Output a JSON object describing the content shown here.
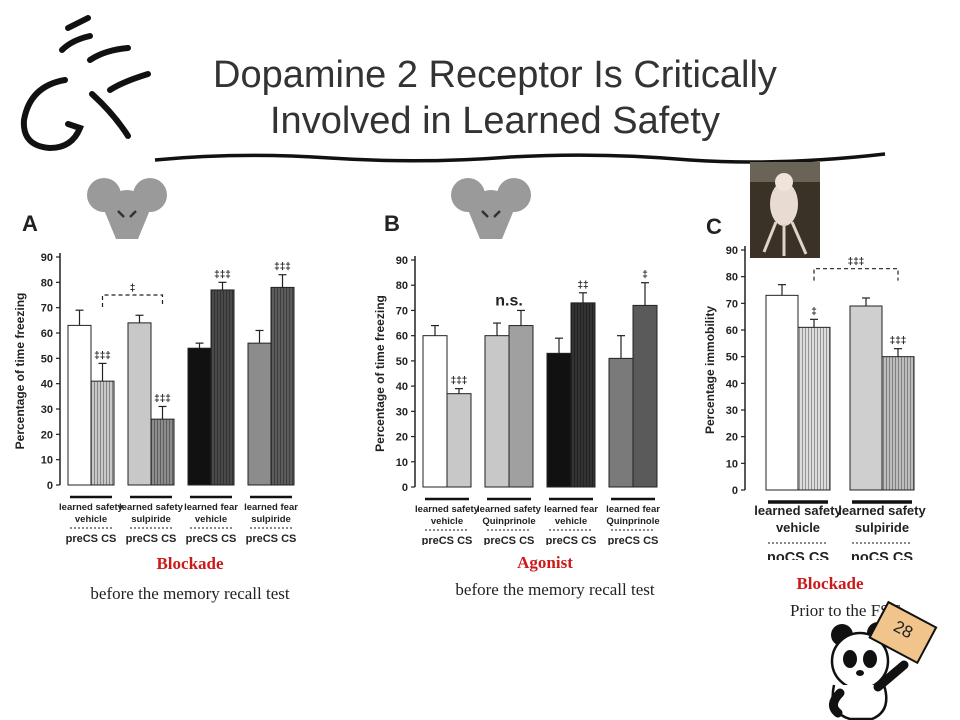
{
  "title": "Dopamine 2 Receptor Is Critically Involved in Learned Safety",
  "slide_number": "28",
  "panels": [
    {
      "letter": "A",
      "caption_red": "Blockade",
      "caption_black": "before the memory recall test"
    },
    {
      "letter": "B",
      "caption_red": "Agonist",
      "caption_black": "before the memory recall test"
    },
    {
      "letter": "C",
      "caption_red": "Blockade",
      "caption_black": "Prior to the FST"
    }
  ],
  "chart_data": [
    {
      "type": "bar",
      "panel": "A",
      "ylabel": "Percentage of time freezing",
      "ylim": [
        0,
        90
      ],
      "yticks": [
        0,
        10,
        20,
        30,
        40,
        50,
        60,
        70,
        80,
        90
      ],
      "groups": [
        {
          "label": [
            "learned safety",
            "vehicle"
          ],
          "cs": "preCS CS"
        },
        {
          "label": [
            "learned safety",
            "sulpiride"
          ],
          "cs": "preCS CS"
        },
        {
          "label": [
            "learned fear",
            "vehicle"
          ],
          "cs": "preCS CS"
        },
        {
          "label": [
            "learned fear",
            "sulpiride"
          ],
          "cs": "preCS CS"
        }
      ],
      "bars": [
        {
          "value": 63,
          "err": 6,
          "color": "#ffffff",
          "pattern": "none",
          "sig": ""
        },
        {
          "value": 41,
          "err": 7,
          "color": "#c8c8c8",
          "pattern": "vlines",
          "sig": "‡‡‡"
        },
        {
          "value": 64,
          "err": 3,
          "color": "#c8c8c8",
          "pattern": "none",
          "sig": ""
        },
        {
          "value": 26,
          "err": 5,
          "color": "#8c8c8c",
          "pattern": "vlines",
          "sig": "‡‡‡"
        },
        {
          "value": 54,
          "err": 2,
          "color": "#111111",
          "pattern": "none",
          "sig": ""
        },
        {
          "value": 77,
          "err": 3,
          "color": "#4a4a4a",
          "pattern": "vlines",
          "sig": "‡‡‡"
        },
        {
          "value": 56,
          "err": 5,
          "color": "#8c8c8c",
          "pattern": "none",
          "sig": ""
        },
        {
          "value": 78,
          "err": 5,
          "color": "#5c5c5c",
          "pattern": "vlines",
          "sig": "‡‡‡"
        }
      ],
      "bracket": {
        "from": 1,
        "to": 3,
        "label": "‡",
        "level": 75
      }
    },
    {
      "type": "bar",
      "panel": "B",
      "ylabel": "Percentage of time freezing",
      "ylim": [
        0,
        90
      ],
      "yticks": [
        0,
        10,
        20,
        30,
        40,
        50,
        60,
        70,
        80,
        90
      ],
      "groups": [
        {
          "label": [
            "learned safety",
            "vehicle"
          ],
          "cs": "preCS CS"
        },
        {
          "label": [
            "learned safety",
            "Quinprinole"
          ],
          "cs": "preCS CS"
        },
        {
          "label": [
            "learned fear",
            "vehicle"
          ],
          "cs": "preCS CS"
        },
        {
          "label": [
            "learned fear",
            "Quinprinole"
          ],
          "cs": "preCS CS"
        }
      ],
      "bars": [
        {
          "value": 60,
          "err": 4,
          "color": "#ffffff",
          "pattern": "none",
          "sig": ""
        },
        {
          "value": 37,
          "err": 2,
          "color": "#c8c8c8",
          "pattern": "none",
          "sig": "‡‡‡"
        },
        {
          "value": 60,
          "err": 5,
          "color": "#c8c8c8",
          "pattern": "none",
          "sig": ""
        },
        {
          "value": 64,
          "err": 6,
          "color": "#a0a0a0",
          "pattern": "none",
          "sig": ""
        },
        {
          "value": 53,
          "err": 6,
          "color": "#111111",
          "pattern": "none",
          "sig": ""
        },
        {
          "value": 73,
          "err": 4,
          "color": "#333333",
          "pattern": "vlines",
          "sig": "‡‡"
        },
        {
          "value": 51,
          "err": 9,
          "color": "#7a7a7a",
          "pattern": "none",
          "sig": ""
        },
        {
          "value": 72,
          "err": 9,
          "color": "#5a5a5a",
          "pattern": "none",
          "sig": "‡"
        }
      ],
      "ns_label": "n.s."
    },
    {
      "type": "bar",
      "panel": "C",
      "ylabel": "Percentage immobility",
      "ylim": [
        0,
        90
      ],
      "yticks": [
        0,
        10,
        20,
        30,
        40,
        50,
        60,
        70,
        80,
        90
      ],
      "groups": [
        {
          "label": [
            "learned safety",
            "vehicle"
          ],
          "cs": "noCS CS"
        },
        {
          "label": [
            "learned safety",
            "sulpiride"
          ],
          "cs": "noCS CS"
        }
      ],
      "bars": [
        {
          "value": 73,
          "err": 4,
          "color": "#ffffff",
          "pattern": "none",
          "sig": ""
        },
        {
          "value": 61,
          "err": 3,
          "color": "#dcdcdc",
          "pattern": "vlines",
          "sig": "‡"
        },
        {
          "value": 69,
          "err": 3,
          "color": "#cfcfcf",
          "pattern": "none",
          "sig": ""
        },
        {
          "value": 50,
          "err": 3,
          "color": "#bdbdbd",
          "pattern": "vlines",
          "sig": "‡‡‡"
        }
      ],
      "bracket": {
        "from": 1,
        "to": 3,
        "label": "‡‡‡",
        "level": 83
      }
    }
  ]
}
